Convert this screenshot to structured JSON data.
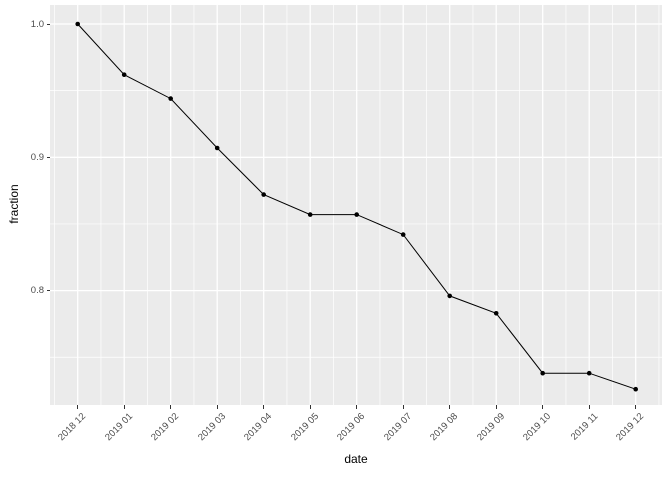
{
  "chart_data": {
    "type": "line",
    "title": "",
    "xlabel": "date",
    "ylabel": "fraction",
    "categories": [
      "2018 12",
      "2019 01",
      "2019 02",
      "2019 03",
      "2019 04",
      "2019 05",
      "2019 06",
      "2019 07",
      "2019 08",
      "2019 09",
      "2019 10",
      "2019 11",
      "2019 12"
    ],
    "values": [
      1.0,
      0.962,
      0.944,
      0.907,
      0.872,
      0.857,
      0.857,
      0.842,
      0.796,
      0.783,
      0.738,
      0.738,
      0.726
    ],
    "ylim": [
      0.713,
      1.013
    ],
    "yticks": {
      "labels": [
        "1.0",
        "0.9",
        "0.8"
      ],
      "values": [
        1.0,
        0.9,
        0.8
      ]
    },
    "minor_yticks": [
      0.95,
      0.85,
      0.75
    ],
    "grid": "on",
    "legend": "none",
    "colors": {
      "panel_bg": "#ebebeb",
      "grid": "#ffffff",
      "line": "#000000",
      "point": "#000000",
      "tick_label": "#4d4d4d",
      "tick_mark": "#333333",
      "axis_title": "#000000",
      "figure_bg": "#ffffff"
    }
  }
}
